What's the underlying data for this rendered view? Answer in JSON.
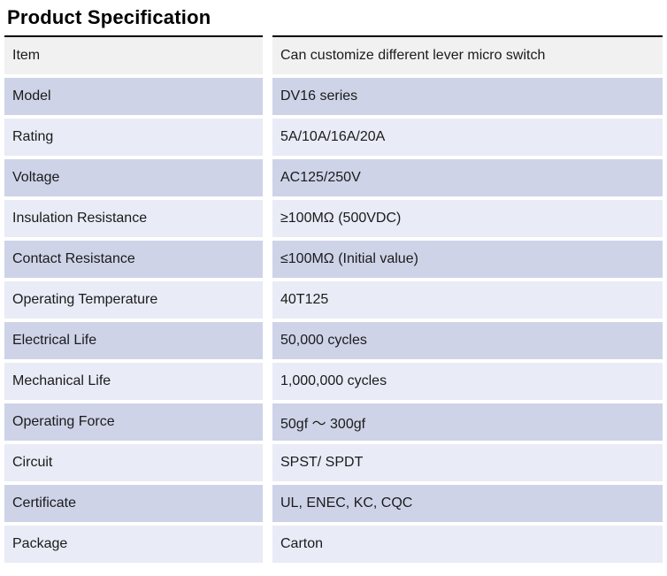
{
  "page": {
    "title": "Product Specification"
  },
  "table": {
    "rows": [
      {
        "label": "Item",
        "value": "Can customize different lever micro switch"
      },
      {
        "label": "Model",
        "value": "DV16 series"
      },
      {
        "label": "Rating",
        "value": "5A/10A/16A/20A"
      },
      {
        "label": "Voltage",
        "value": "AC125/250V"
      },
      {
        "label": "Insulation Resistance",
        "value": "≥100MΩ (500VDC)"
      },
      {
        "label": "Contact Resistance",
        "value": "≤100MΩ (Initial value)"
      },
      {
        "label": "Operating Temperature",
        "value": "40T125"
      },
      {
        "label": "Electrical Life",
        "value": "50,000 cycles"
      },
      {
        "label": "Mechanical Life",
        "value": "1,000,000 cycles"
      },
      {
        "label": "Operating Force",
        "value": "50gf ～ 300gf"
      },
      {
        "label": "Circuit",
        "value": "SPST/ SPDT"
      },
      {
        "label": "Certificate",
        "value": "UL, ENEC, KC, CQC"
      },
      {
        "label": "Package",
        "value": "Carton"
      }
    ],
    "colors": {
      "header_bg": "#f1f1f2",
      "row_lavender": "#ced3e8",
      "row_pale": "#e9ebf6",
      "rule": "#000000",
      "text": "#1b1b1b"
    }
  }
}
